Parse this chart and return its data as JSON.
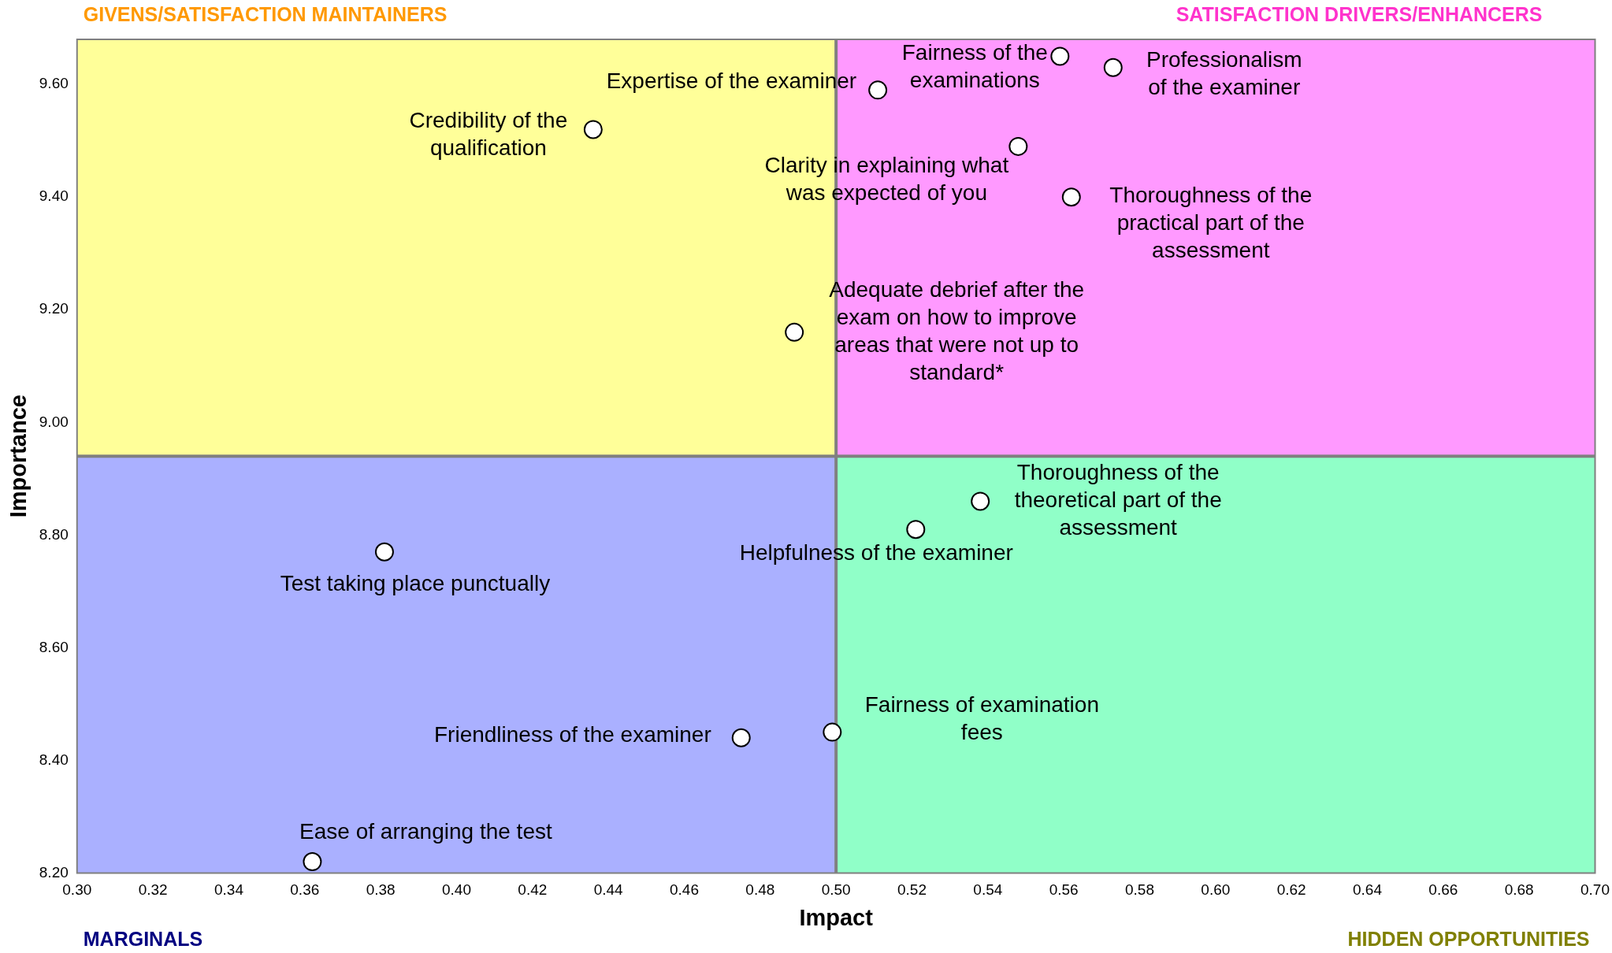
{
  "chart_data": {
    "type": "scatter",
    "xlabel": "Impact",
    "ylabel": "Importance",
    "x": [
      0.559,
      0.573,
      0.511,
      0.436,
      0.548,
      0.562,
      0.489,
      0.538,
      0.521,
      0.381,
      0.475,
      0.499,
      0.362
    ],
    "values": [
      9.65,
      9.63,
      9.59,
      9.52,
      9.49,
      9.4,
      9.16,
      8.86,
      8.81,
      8.77,
      8.44,
      8.45,
      8.22
    ],
    "color": "#ffffff",
    "marker": "circle",
    "xlim": [
      0.3,
      0.7
    ],
    "ylim": [
      8.2,
      9.68
    ],
    "xticks": [
      {
        "value": 0.3,
        "label": "0.30"
      },
      {
        "value": 0.32,
        "label": "0.32"
      },
      {
        "value": 0.34,
        "label": "0.34"
      },
      {
        "value": 0.36,
        "label": "0.36"
      },
      {
        "value": 0.38,
        "label": "0.38"
      },
      {
        "value": 0.4,
        "label": "0.40"
      },
      {
        "value": 0.42,
        "label": "0.42"
      },
      {
        "value": 0.44,
        "label": "0.44"
      },
      {
        "value": 0.46,
        "label": "0.46"
      },
      {
        "value": 0.48,
        "label": "0.48"
      },
      {
        "value": 0.5,
        "label": "0.50"
      },
      {
        "value": 0.52,
        "label": "0.52"
      },
      {
        "value": 0.54,
        "label": "0.54"
      },
      {
        "value": 0.56,
        "label": "0.56"
      },
      {
        "value": 0.58,
        "label": "0.58"
      },
      {
        "value": 0.6,
        "label": "0.60"
      },
      {
        "value": 0.62,
        "label": "0.62"
      },
      {
        "value": 0.64,
        "label": "0.64"
      },
      {
        "value": 0.66,
        "label": "0.66"
      },
      {
        "value": 0.68,
        "label": "0.68"
      },
      {
        "value": 0.7,
        "label": "0.70"
      }
    ],
    "yticks": [
      {
        "value": 8.2,
        "label": "8.20"
      },
      {
        "value": 8.4,
        "label": "8.40"
      },
      {
        "value": 8.6,
        "label": "8.60"
      },
      {
        "value": 8.8,
        "label": "8.80"
      },
      {
        "value": 9.0,
        "label": "9.00"
      },
      {
        "value": 9.2,
        "label": "9.20"
      },
      {
        "value": 9.4,
        "label": "9.40"
      },
      {
        "value": 9.6,
        "label": "9.60"
      }
    ],
    "grid": false,
    "legend": false,
    "ref_lines": [
      {
        "axis": "x",
        "value": 0.5,
        "color": "#808080"
      },
      {
        "axis": "y",
        "value": 8.94,
        "color": "#808080"
      }
    ],
    "bands": [
      {
        "axis": "x",
        "from": 0.3,
        "to": 0.5,
        "color": "#ffff99",
        "label": "GIVENS/SATISFACTION MAINTAINERS"
      },
      {
        "axis": "x",
        "from": 0.5,
        "to": 0.7,
        "color": "#ff99ff",
        "label": "SATISFACTION DRIVERS/ENHANCERS"
      },
      {
        "axis": "x",
        "from": 0.3,
        "to": 0.5,
        "color": "#aab0ff",
        "label": "MARGINALS"
      },
      {
        "axis": "x",
        "from": 0.5,
        "to": 0.7,
        "color": "#90ffc8",
        "label": "HIDDEN OPPORTUNITIES"
      }
    ],
    "annotations": [
      {
        "text": "Fairness of the examinations",
        "x": 0.559,
        "y": 9.65
      },
      {
        "text": "Professionalism of the examiner",
        "x": 0.573,
        "y": 9.63
      },
      {
        "text": "Expertise of the examiner",
        "x": 0.511,
        "y": 9.59
      },
      {
        "text": "Credibility of the qualification",
        "x": 0.436,
        "y": 9.52
      },
      {
        "text": "Clarity in explaining what was expected of you",
        "x": 0.548,
        "y": 9.49
      },
      {
        "text": "Thoroughness of the practical part of the assessment",
        "x": 0.562,
        "y": 9.4
      },
      {
        "text": "Adequate debrief after the exam on how to improve areas that were not up to standard*",
        "x": 0.489,
        "y": 9.16
      },
      {
        "text": "Thoroughness of the theoretical part of the assessment",
        "x": 0.538,
        "y": 8.86
      },
      {
        "text": "Helpfulness of the examiner",
        "x": 0.521,
        "y": 8.81
      },
      {
        "text": "Test taking place punctually",
        "x": 0.381,
        "y": 8.77
      },
      {
        "text": "Friendliness of the examiner",
        "x": 0.475,
        "y": 8.44
      },
      {
        "text": "Fairness of examination fees",
        "x": 0.499,
        "y": 8.45
      },
      {
        "text": "Ease of arranging the test",
        "x": 0.362,
        "y": 8.22
      }
    ]
  }
}
